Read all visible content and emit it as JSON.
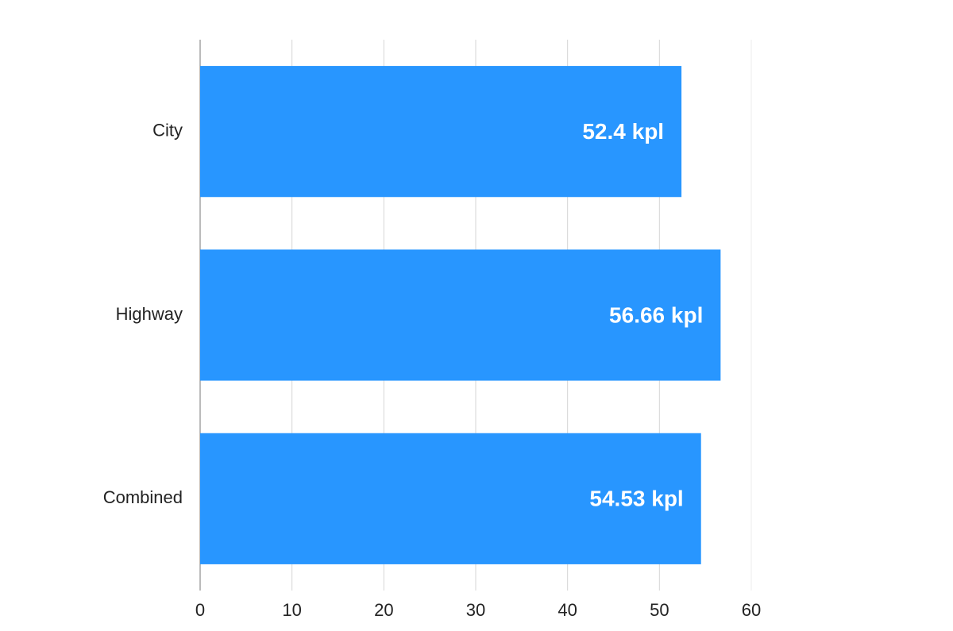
{
  "chart_data": {
    "type": "hbar",
    "categories": [
      "City",
      "Highway",
      "Combined"
    ],
    "values": [
      52.4,
      56.66,
      54.53
    ],
    "value_labels": [
      "52.4 kpl",
      "56.66 kpl",
      "54.53 kpl"
    ],
    "color": "#2896ff",
    "xlim": [
      0,
      60
    ],
    "xticks": [
      0,
      10,
      20,
      30,
      40,
      50,
      60
    ],
    "grid": true
  }
}
